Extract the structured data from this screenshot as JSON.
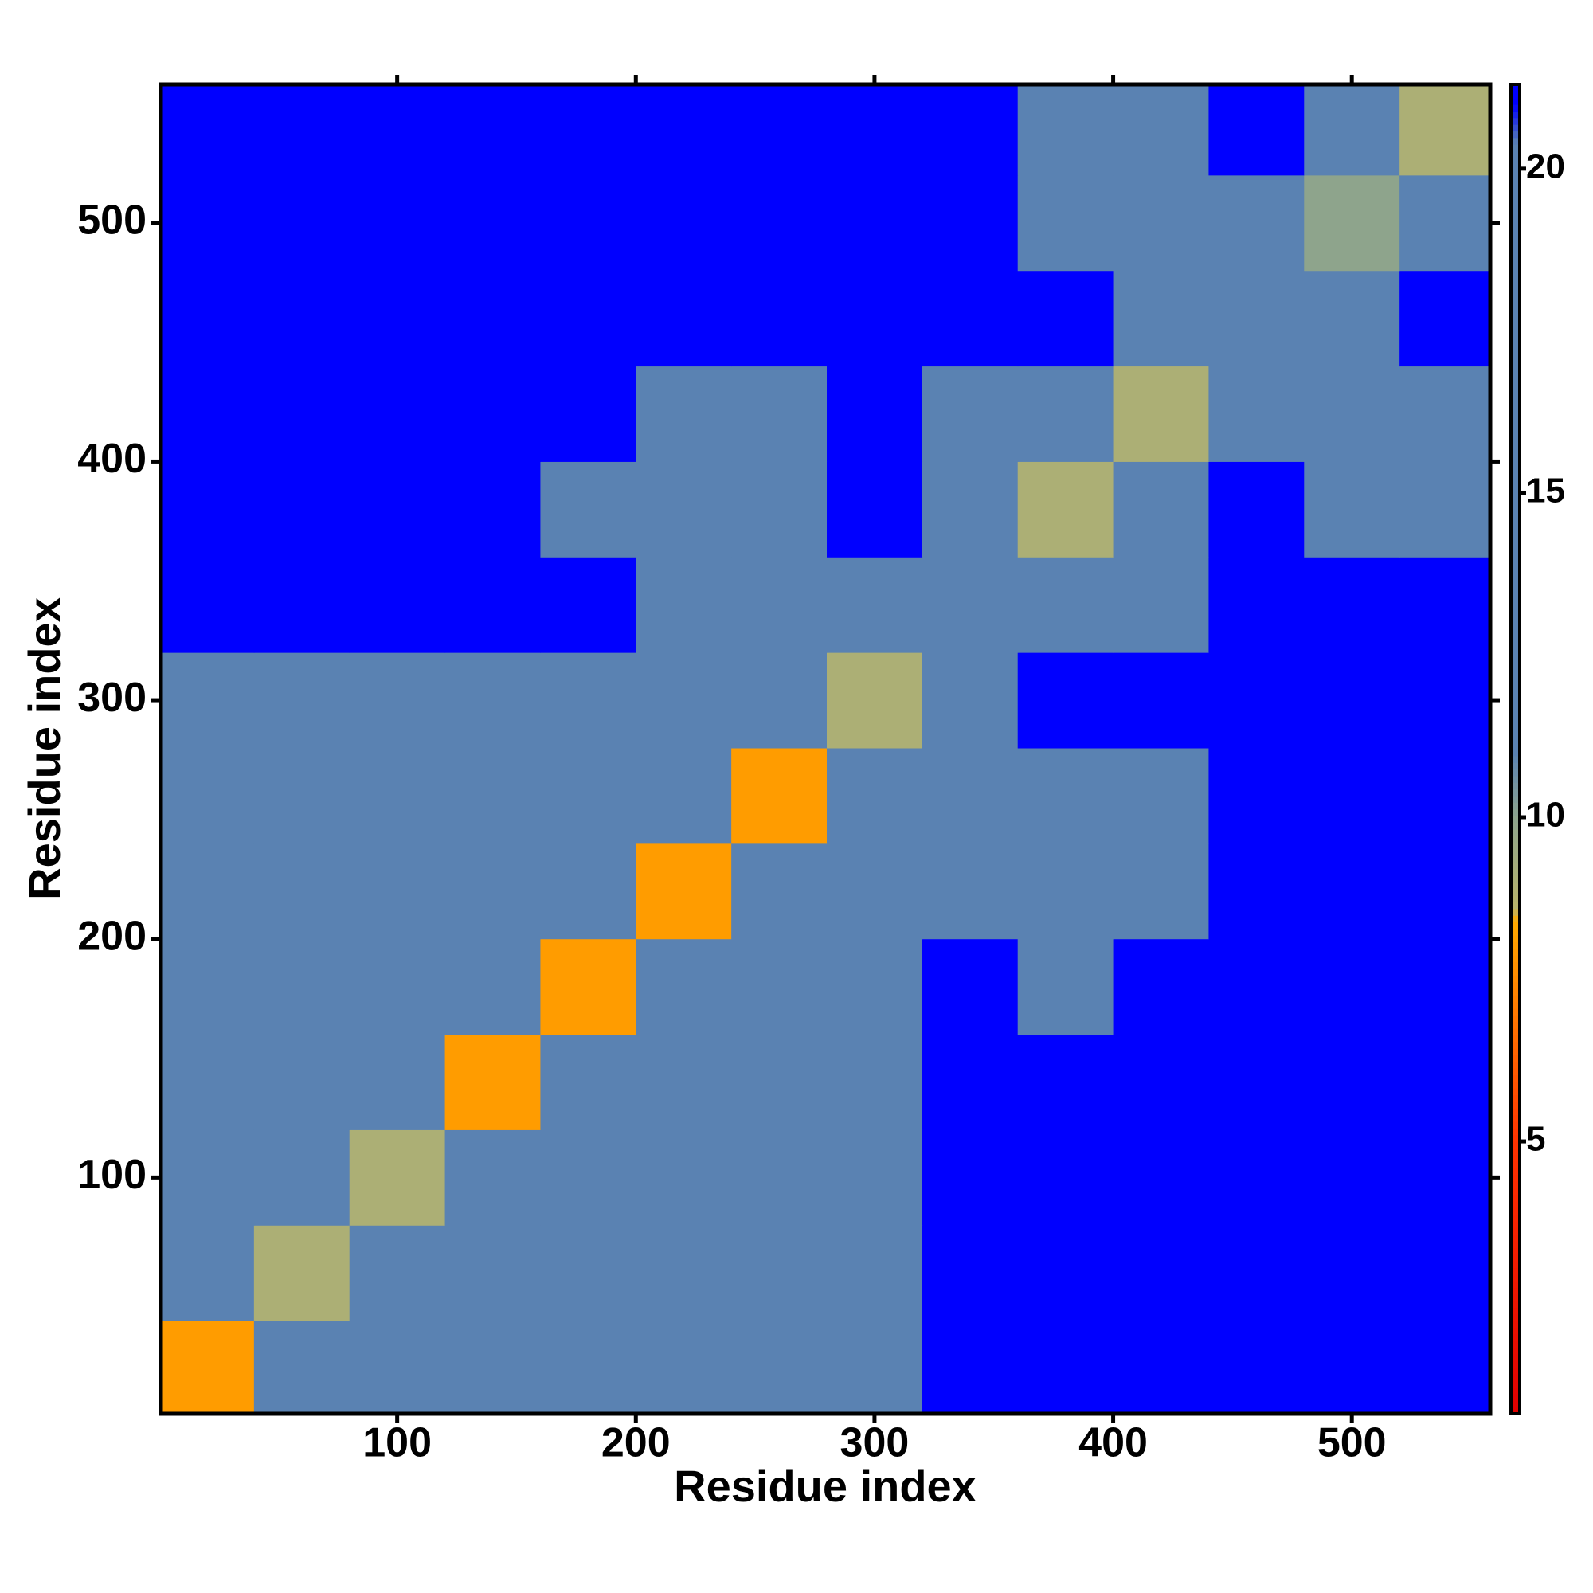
{
  "chart_data": {
    "type": "heatmap",
    "xlabel": "Residue index",
    "ylabel": "Residue index",
    "xlim": [
      1,
      558
    ],
    "ylim": [
      1,
      558
    ],
    "xticks": [
      100,
      200,
      300,
      400,
      500
    ],
    "yticks": [
      100,
      200,
      300,
      400,
      500
    ],
    "x_edges": [
      1,
      40,
      80,
      120,
      160,
      200,
      240,
      280,
      320,
      360,
      400,
      440,
      480,
      520,
      558
    ],
    "y_edges": [
      1,
      40,
      80,
      120,
      160,
      200,
      240,
      280,
      320,
      360,
      400,
      440,
      480,
      520,
      558
    ],
    "z": [
      [
        8,
        13,
        16,
        17,
        18,
        16,
        18,
        18,
        21,
        21,
        21,
        21,
        21,
        21
      ],
      [
        13,
        9,
        14,
        13,
        18,
        17,
        17,
        19,
        21,
        21,
        21,
        21,
        21,
        21
      ],
      [
        16,
        14,
        9,
        13,
        15,
        16,
        16,
        17,
        21,
        21,
        21,
        21,
        21,
        21
      ],
      [
        17,
        16,
        13,
        8,
        13,
        15,
        14,
        17,
        21,
        21,
        21,
        21,
        21,
        21
      ],
      [
        18,
        15,
        15,
        13,
        8,
        13,
        14,
        16,
        21,
        20,
        21,
        21,
        21,
        21
      ],
      [
        16,
        17,
        17,
        16,
        13,
        8,
        12,
        14,
        19,
        19,
        20,
        21,
        21,
        21
      ],
      [
        17,
        15,
        16,
        15,
        14,
        12,
        8,
        12,
        19,
        19,
        20,
        21,
        21,
        21
      ],
      [
        19,
        19,
        17,
        16,
        14,
        14,
        12,
        9,
        12,
        21,
        21,
        21,
        21,
        21
      ],
      [
        21,
        21,
        21,
        21,
        21,
        19,
        19,
        12,
        12,
        15,
        17,
        21,
        21,
        21
      ],
      [
        21,
        21,
        21,
        21,
        20,
        19,
        19,
        21,
        15,
        9,
        13,
        21,
        18,
        17
      ],
      [
        21,
        21,
        21,
        21,
        21,
        20,
        20,
        21,
        17,
        13,
        9,
        14,
        19,
        17
      ],
      [
        21,
        21,
        21,
        21,
        21,
        21,
        21,
        21,
        21,
        21,
        14,
        14,
        14,
        21
      ],
      [
        21,
        21,
        21,
        21,
        21,
        21,
        21,
        21,
        21,
        17,
        18,
        14,
        10,
        12
      ],
      [
        21,
        21,
        21,
        21,
        21,
        21,
        21,
        21,
        21,
        16,
        16,
        21,
        12,
        9
      ]
    ],
    "zlim": [
      0.8,
      21.3
    ],
    "zticks": [
      5,
      10,
      15,
      20
    ],
    "colorscale": [
      {
        "value": 0.8,
        "color": "#e00000"
      },
      {
        "value": 5,
        "color": "#ff3300"
      },
      {
        "value": 8.4,
        "color": "#ffaa00"
      },
      {
        "value": 8.6,
        "color": "#b8b46c"
      },
      {
        "value": 10,
        "color": "#8ea48c"
      },
      {
        "value": 11,
        "color": "#5a82b2"
      },
      {
        "value": 20.4,
        "color": "#5a82b2"
      },
      {
        "value": 21,
        "color": "#0000ff"
      },
      {
        "value": 21.3,
        "color": "#0000ff"
      }
    ]
  }
}
